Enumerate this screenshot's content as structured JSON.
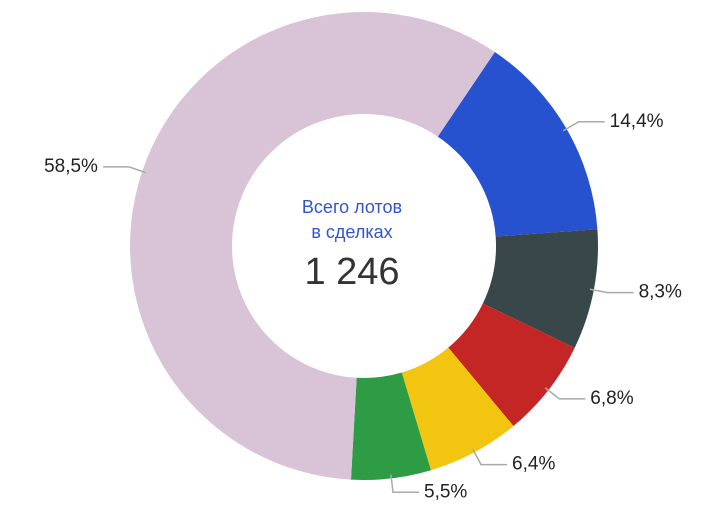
{
  "chart_data": {
    "type": "donut",
    "center_title": [
      "Всего лотов",
      "в сделках"
    ],
    "center_total": "1 246",
    "categories": [
      null,
      null,
      null,
      null,
      null,
      null
    ],
    "values": [
      14.4,
      8.3,
      6.8,
      6.4,
      5.5,
      58.5
    ],
    "value_labels": [
      "14,4%",
      "8,3%",
      "6,8%",
      "6,4%",
      "5,5%",
      "58,5%"
    ],
    "colors": [
      "#2651cf",
      "#37474a",
      "#c42625",
      "#f2c511",
      "#2e9c45",
      "#d9c3d7"
    ]
  }
}
